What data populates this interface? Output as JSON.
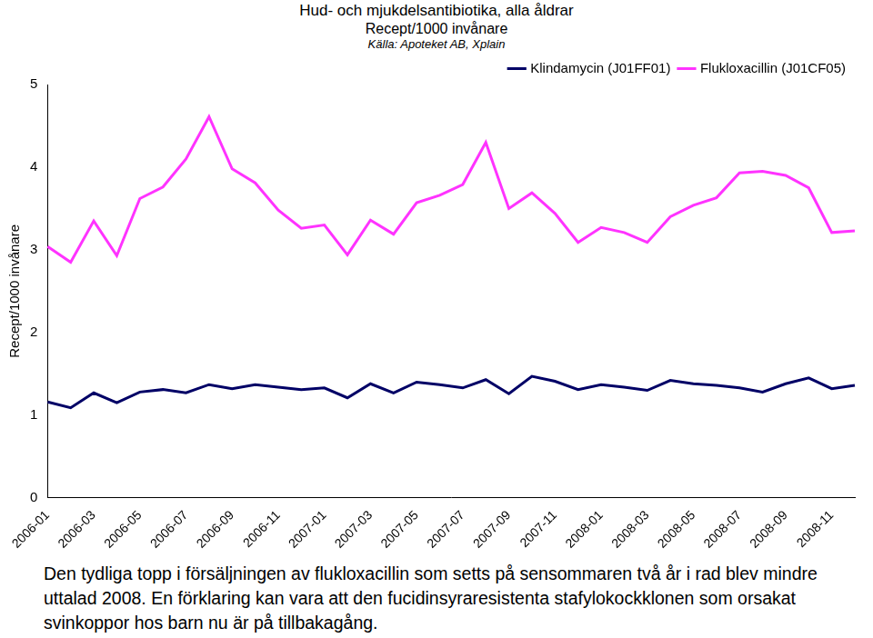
{
  "chart_data": {
    "type": "line",
    "title": "Hud- och mjukdelsantibiotika, alla åldrar",
    "subtitle": "Recept/1000 invånare",
    "source": "Källa: Apoteket AB, Xplain",
    "y_label": "Recept/1000 invånare",
    "caption": "Den tydliga topp i försäljningen av flukloxacillin som setts på sensommaren två år i rad blev mindre uttalad 2008. En förklaring kan vara att den fucidinsyraresistenta stafylokockklonen som orsakat svinkoppor hos barn nu är på tillbakagång.",
    "categories": [
      "2006-01",
      null,
      "2006-03",
      null,
      "2006-05",
      null,
      "2006-07",
      null,
      "2006-09",
      null,
      "2006-11",
      null,
      "2007-01",
      null,
      "2007-03",
      null,
      "2007-05",
      null,
      "2007-07",
      null,
      "2007-09",
      null,
      "2007-11",
      null,
      "2008-01",
      null,
      "2008-03",
      null,
      "2008-05",
      null,
      "2008-07",
      null,
      "2008-09",
      null,
      "2008-11",
      null
    ],
    "series": [
      {
        "name": "Klindamycin (J01FF01)",
        "color": "#000066",
        "values": [
          1.16,
          1.09,
          1.27,
          1.15,
          1.28,
          1.31,
          1.27,
          1.37,
          1.32,
          1.37,
          1.34,
          1.31,
          1.33,
          1.21,
          1.38,
          1.27,
          1.4,
          1.37,
          1.33,
          1.43,
          1.26,
          1.47,
          1.41,
          1.31,
          1.37,
          1.34,
          1.3,
          1.42,
          1.38,
          1.36,
          1.33,
          1.28,
          1.38,
          1.45,
          1.32,
          1.36
        ]
      },
      {
        "name": "Flukloxacillin (J01CF05)",
        "color": "#ff33ff",
        "values": [
          3.04,
          2.85,
          3.35,
          2.93,
          3.62,
          3.76,
          4.1,
          4.61,
          3.98,
          3.81,
          3.48,
          3.26,
          3.3,
          2.94,
          3.36,
          3.19,
          3.57,
          3.66,
          3.79,
          4.3,
          3.5,
          3.69,
          3.44,
          3.09,
          3.27,
          3.21,
          3.09,
          3.4,
          3.54,
          3.63,
          3.93,
          3.95,
          3.9,
          3.75,
          3.21,
          3.23
        ]
      }
    ],
    "ylim": [
      0,
      5
    ],
    "yticks": [
      0,
      1,
      2,
      3,
      4,
      5
    ],
    "grid": false,
    "legend": "upper right"
  }
}
